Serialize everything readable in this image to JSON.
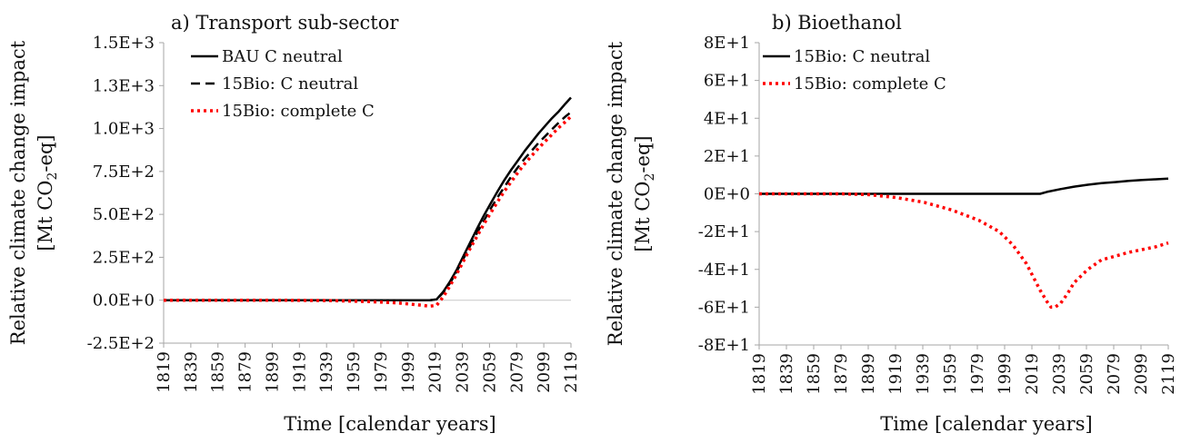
{
  "chart_data": [
    {
      "type": "line",
      "title": "a) Transport sub-sector",
      "xlabel": "Time [calendar years]",
      "ylabel": "Relative climate change impact",
      "ylabel2_prefix": "[Mt CO",
      "ylabel2_sub": "2",
      "ylabel2_suffix": "-eq]",
      "xlim": [
        1819,
        2119
      ],
      "ylim": [
        -250,
        1500
      ],
      "xticks": [
        "1819",
        "1839",
        "1859",
        "1879",
        "1899",
        "1919",
        "1939",
        "1959",
        "1979",
        "1999",
        "2019",
        "2039",
        "2059",
        "2079",
        "2099",
        "2119"
      ],
      "yticks": [
        {
          "v": 1500,
          "t": "1.5E+3"
        },
        {
          "v": 1250,
          "t": "1.3E+3"
        },
        {
          "v": 1000,
          "t": "1.0E+3"
        },
        {
          "v": 750,
          "t": "7.5E+2"
        },
        {
          "v": 500,
          "t": "5.0E+2"
        },
        {
          "v": 250,
          "t": "2.5E+2"
        },
        {
          "v": 0,
          "t": "0.0E+0"
        },
        {
          "v": -250,
          "t": "-2.5E+2"
        }
      ],
      "zero_line": true,
      "legend_position": "top-left",
      "series": [
        {
          "name": "BAU C neutral",
          "color": "#000000",
          "style": "solid",
          "x": [
            1819,
            1900,
            2000,
            2015,
            2020,
            2025,
            2030,
            2035,
            2040,
            2045,
            2050,
            2055,
            2060,
            2065,
            2070,
            2075,
            2080,
            2085,
            2090,
            2095,
            2100,
            2105,
            2110,
            2115,
            2119
          ],
          "y": [
            0,
            0,
            0,
            0,
            5,
            50,
            110,
            180,
            260,
            340,
            420,
            495,
            565,
            635,
            700,
            760,
            815,
            870,
            920,
            970,
            1015,
            1060,
            1100,
            1145,
            1180
          ]
        },
        {
          "name": "15Bio: C neutral",
          "color": "#000000",
          "style": "dashed",
          "x": [
            1819,
            1900,
            2000,
            2015,
            2020,
            2025,
            2030,
            2035,
            2040,
            2045,
            2050,
            2055,
            2060,
            2065,
            2070,
            2075,
            2080,
            2085,
            2090,
            2095,
            2100,
            2105,
            2110,
            2115,
            2119
          ],
          "y": [
            0,
            0,
            0,
            0,
            5,
            45,
            100,
            170,
            245,
            320,
            395,
            465,
            535,
            600,
            660,
            720,
            775,
            825,
            870,
            915,
            955,
            995,
            1035,
            1070,
            1095
          ]
        },
        {
          "name": "15Bio: complete C",
          "color": "#ff0000",
          "style": "dotted",
          "x": [
            1819,
            1900,
            1940,
            1970,
            1990,
            2000,
            2010,
            2015,
            2020,
            2025,
            2030,
            2035,
            2040,
            2045,
            2050,
            2055,
            2060,
            2065,
            2070,
            2075,
            2080,
            2085,
            2090,
            2095,
            2100,
            2105,
            2110,
            2115,
            2119
          ],
          "y": [
            0,
            0,
            -2,
            -8,
            -15,
            -22,
            -30,
            -35,
            -30,
            20,
            85,
            155,
            230,
            305,
            375,
            445,
            510,
            575,
            635,
            690,
            745,
            795,
            840,
            885,
            925,
            965,
            1005,
            1040,
            1070
          ]
        }
      ]
    },
    {
      "type": "line",
      "title": "b) Bioethanol",
      "xlabel": "Time [calendar years]",
      "ylabel": "Relative climate change impact",
      "ylabel2_prefix": "[Mt CO",
      "ylabel2_sub": "2",
      "ylabel2_suffix": "-eq]",
      "xlim": [
        1819,
        2119
      ],
      "ylim": [
        -80,
        80
      ],
      "xticks": [
        "1819",
        "1839",
        "1859",
        "1879",
        "1899",
        "1919",
        "1939",
        "1959",
        "1979",
        "1999",
        "2019",
        "2039",
        "2059",
        "2079",
        "2099",
        "2119"
      ],
      "yticks": [
        {
          "v": 80,
          "t": "8E+1"
        },
        {
          "v": 60,
          "t": "6E+1"
        },
        {
          "v": 40,
          "t": "4E+1"
        },
        {
          "v": 20,
          "t": "2E+1"
        },
        {
          "v": 0,
          "t": "0E+0"
        },
        {
          "v": -20,
          "t": "-2E+1"
        },
        {
          "v": -40,
          "t": "-4E+1"
        },
        {
          "v": -60,
          "t": "-6E+1"
        },
        {
          "v": -80,
          "t": "-8E+1"
        }
      ],
      "zero_line": false,
      "legend_position": "top-left",
      "series": [
        {
          "name": "15Bio: C neutral",
          "color": "#000000",
          "style": "solid",
          "x": [
            1819,
            1900,
            2000,
            2020,
            2025,
            2030,
            2040,
            2050,
            2060,
            2070,
            2080,
            2090,
            2100,
            2110,
            2119
          ],
          "y": [
            0,
            0,
            0,
            0,
            0,
            1,
            2.5,
            3.8,
            4.8,
            5.6,
            6.2,
            6.8,
            7.3,
            7.7,
            8
          ]
        },
        {
          "name": "15Bio: complete C",
          "color": "#ff0000",
          "style": "dotted",
          "x": [
            1819,
            1880,
            1900,
            1920,
            1940,
            1960,
            1980,
            1995,
            2005,
            2015,
            2020,
            2025,
            2030,
            2033,
            2036,
            2040,
            2045,
            2050,
            2060,
            2070,
            2080,
            2090,
            2100,
            2110,
            2119
          ],
          "y": [
            0,
            0,
            -0.5,
            -2,
            -4.5,
            -8.5,
            -14,
            -20,
            -27,
            -37,
            -44,
            -51,
            -57,
            -60,
            -60,
            -58,
            -53,
            -47,
            -40,
            -35,
            -33,
            -31,
            -29.5,
            -28,
            -26
          ]
        }
      ]
    }
  ]
}
